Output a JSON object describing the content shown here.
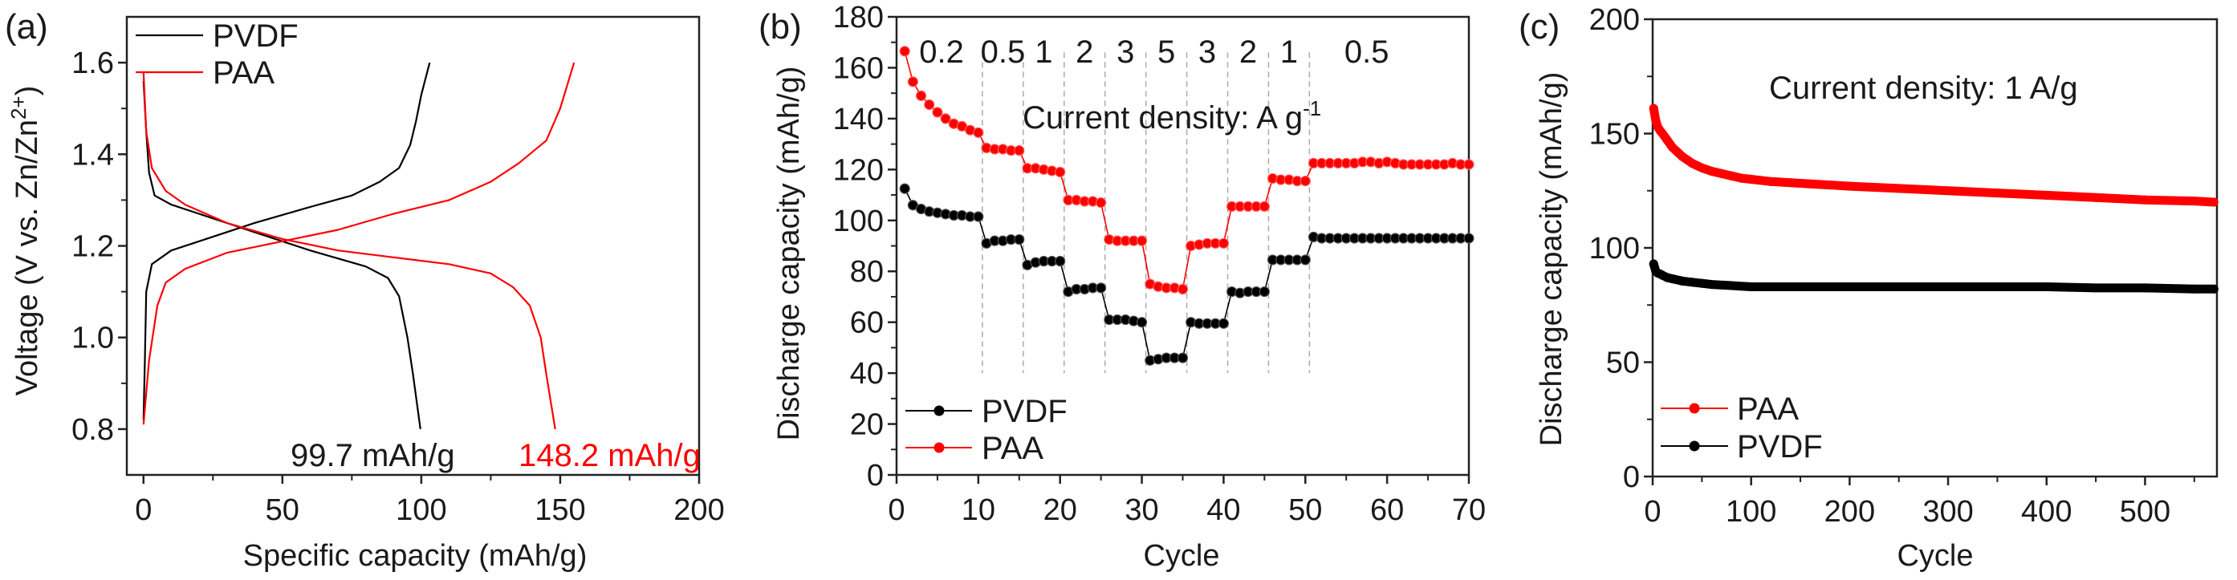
{
  "chart_data": [
    {
      "panel_label": "(a)",
      "type": "line",
      "xlabel": "Specific capacity (mAh/g)",
      "ylabel": "Voltage (V vs. Zn/Zn2+)",
      "ylabel_parts": {
        "main": "Voltage (V vs. Zn/Zn",
        "sup": "2+",
        "end": ")"
      },
      "xlim": [
        -6,
        200
      ],
      "ylim": [
        0.7,
        1.7
      ],
      "xticks": [
        "0",
        "50",
        "100",
        "150",
        "200"
      ],
      "yticks": [
        "0.8",
        "1.0",
        "1.2",
        "1.4",
        "1.6"
      ],
      "legend": "top-left",
      "annotations": [
        {
          "text": "99.7 mAh/g",
          "color": "#000000"
        },
        {
          "text": "148.2 mAh/g",
          "color": "#ff0000"
        }
      ],
      "series": [
        {
          "name": "PVDF",
          "color": "#000000",
          "discharge": [
            [
              0,
              1.56
            ],
            [
              1,
              1.45
            ],
            [
              2,
              1.36
            ],
            [
              4,
              1.31
            ],
            [
              10,
              1.29
            ],
            [
              20,
              1.27
            ],
            [
              40,
              1.23
            ],
            [
              60,
              1.19
            ],
            [
              80,
              1.155
            ],
            [
              88,
              1.13
            ],
            [
              92,
              1.09
            ],
            [
              95,
              1.0
            ],
            [
              97,
              0.92
            ],
            [
              99.7,
              0.8
            ]
          ],
          "charge": [
            [
              0,
              0.82
            ],
            [
              0.5,
              0.95
            ],
            [
              1,
              1.1
            ],
            [
              3,
              1.16
            ],
            [
              10,
              1.19
            ],
            [
              20,
              1.21
            ],
            [
              40,
              1.25
            ],
            [
              60,
              1.285
            ],
            [
              75,
              1.31
            ],
            [
              85,
              1.34
            ],
            [
              92,
              1.37
            ],
            [
              96,
              1.42
            ],
            [
              98,
              1.47
            ],
            [
              100,
              1.53
            ],
            [
              103,
              1.6
            ]
          ]
        },
        {
          "name": "PAA",
          "color": "#ff0000",
          "discharge": [
            [
              0,
              1.58
            ],
            [
              1,
              1.45
            ],
            [
              3,
              1.37
            ],
            [
              8,
              1.32
            ],
            [
              15,
              1.29
            ],
            [
              30,
              1.25
            ],
            [
              50,
              1.215
            ],
            [
              70,
              1.19
            ],
            [
              90,
              1.175
            ],
            [
              110,
              1.16
            ],
            [
              125,
              1.14
            ],
            [
              133,
              1.11
            ],
            [
              139,
              1.07
            ],
            [
              143,
              1.0
            ],
            [
              145,
              0.92
            ],
            [
              148.2,
              0.8
            ]
          ],
          "charge": [
            [
              0,
              0.81
            ],
            [
              2,
              0.95
            ],
            [
              5,
              1.07
            ],
            [
              8,
              1.12
            ],
            [
              15,
              1.15
            ],
            [
              30,
              1.185
            ],
            [
              50,
              1.21
            ],
            [
              70,
              1.235
            ],
            [
              90,
              1.27
            ],
            [
              110,
              1.3
            ],
            [
              125,
              1.34
            ],
            [
              135,
              1.38
            ],
            [
              145,
              1.43
            ],
            [
              150,
              1.5
            ],
            [
              155,
              1.6
            ]
          ]
        }
      ]
    },
    {
      "panel_label": "(b)",
      "type": "line",
      "xlabel": "Cycle",
      "ylabel": "Discharge capacity (mAh/g)",
      "xlim": [
        0,
        70
      ],
      "ylim": [
        0,
        180
      ],
      "xticks": [
        "0",
        "10",
        "20",
        "30",
        "40",
        "50",
        "60",
        "70"
      ],
      "yticks": [
        "0",
        "20",
        "40",
        "60",
        "80",
        "100",
        "120",
        "140",
        "160",
        "180"
      ],
      "legend": "bottom-left",
      "annotation": {
        "main": "Current density: A g",
        "sup": "-1"
      },
      "rate_labels": [
        "0.2",
        "0.5",
        "1",
        "2",
        "3",
        "5",
        "3",
        "2",
        "1",
        "0.5"
      ],
      "rate_boundaries": [
        10.5,
        15.5,
        20.5,
        25.5,
        30.5,
        35.5,
        40.5,
        45.5,
        50.5
      ],
      "series": [
        {
          "name": "PVDF",
          "color": "#000000",
          "values": [
            112.5,
            106,
            104.5,
            103.5,
            103,
            102.5,
            102,
            102,
            101.5,
            101.5,
            91,
            92,
            92,
            92.5,
            92.5,
            82.5,
            83.5,
            84,
            84,
            84,
            72,
            73,
            73,
            73.5,
            73.5,
            61,
            61,
            61,
            60.5,
            60,
            45,
            45.5,
            46,
            46,
            46,
            60,
            59.5,
            59.5,
            59.5,
            59.5,
            72,
            71.5,
            72,
            72,
            72,
            84.5,
            84.5,
            84.5,
            84.5,
            84.5,
            93.5,
            93,
            93,
            93,
            93,
            93,
            93,
            93,
            93,
            93,
            93,
            93,
            93,
            93,
            93,
            93,
            93,
            93,
            93,
            93
          ]
        },
        {
          "name": "PAA",
          "color": "#ff0000",
          "values": [
            166.5,
            154.5,
            149,
            145.5,
            142.5,
            140,
            138,
            137,
            135.5,
            134.5,
            128.5,
            128,
            128,
            127.5,
            127.5,
            120.5,
            120.5,
            120,
            119.5,
            119,
            108,
            108,
            107.5,
            107.5,
            107,
            92.5,
            92,
            92,
            92,
            92,
            75,
            74,
            73.5,
            73.5,
            73,
            90,
            90.5,
            91,
            91,
            91,
            105.5,
            105.5,
            105.5,
            105.5,
            105.5,
            116.5,
            116,
            116,
            115.5,
            115.5,
            122.5,
            122.5,
            122.5,
            122.5,
            122.5,
            122.5,
            123,
            123,
            122.5,
            123,
            122.5,
            122,
            122,
            122,
            122,
            122,
            122,
            122.5,
            122,
            122
          ]
        }
      ]
    },
    {
      "panel_label": "(c)",
      "type": "scatter",
      "xlabel": "Cycle",
      "ylabel": "Discharge capacity (mAh/g)",
      "xlim": [
        0,
        573
      ],
      "ylim": [
        0,
        200
      ],
      "xticks": [
        "0",
        "100",
        "200",
        "300",
        "400",
        "500"
      ],
      "yticks": [
        "0",
        "50",
        "100",
        "150",
        "200"
      ],
      "legend": "bottom-left",
      "annotation": "Current density: 1 A/g",
      "series": [
        {
          "name": "PAA",
          "color": "#ff0000",
          "x": [
            1,
            3,
            5,
            8,
            10,
            15,
            20,
            25,
            30,
            40,
            50,
            60,
            70,
            80,
            90,
            100,
            120,
            140,
            160,
            180,
            200,
            250,
            300,
            350,
            400,
            450,
            500,
            550,
            570
          ],
          "y": [
            161,
            156,
            153,
            151,
            150,
            147,
            144,
            142,
            140,
            137,
            135,
            133.5,
            132.5,
            131.5,
            130.5,
            130,
            129,
            128.5,
            128,
            127.5,
            127,
            126,
            125,
            124,
            123,
            122,
            121,
            120.5,
            120
          ]
        },
        {
          "name": "PVDF",
          "color": "#000000",
          "x": [
            1,
            3,
            5,
            8,
            10,
            15,
            20,
            30,
            40,
            50,
            60,
            80,
            100,
            150,
            200,
            250,
            300,
            350,
            400,
            450,
            500,
            550,
            570
          ],
          "y": [
            93,
            90,
            89,
            88.5,
            88,
            87,
            86.5,
            85.5,
            85,
            84.5,
            84,
            83.5,
            83,
            83,
            83,
            83,
            83,
            83,
            83,
            82.5,
            82.5,
            82,
            82
          ]
        }
      ]
    }
  ]
}
